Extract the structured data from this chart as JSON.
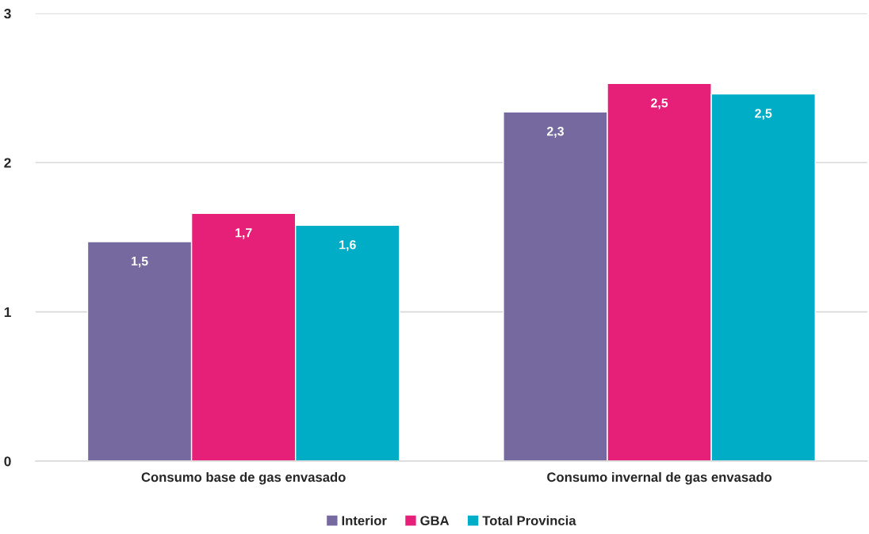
{
  "chart_data": {
    "type": "bar",
    "categories": [
      "Consumo base de gas envasado",
      "Consumo invernal de gas envasado"
    ],
    "series": [
      {
        "name": "Interior",
        "color": "#76699f",
        "values": [
          1.47,
          2.34
        ],
        "value_labels": [
          "1,5",
          "2,3"
        ]
      },
      {
        "name": "GBA",
        "color": "#e61f78",
        "values": [
          1.66,
          2.53
        ],
        "value_labels": [
          "1,7",
          "2,5"
        ]
      },
      {
        "name": "Total Provincia",
        "color": "#00adc6",
        "values": [
          1.58,
          2.46
        ],
        "value_labels": [
          "1,6",
          "2,5"
        ]
      }
    ],
    "ylim": [
      0,
      3
    ],
    "yticks": [
      0,
      1,
      2,
      3
    ],
    "grid": "y",
    "legend": "bottom"
  }
}
